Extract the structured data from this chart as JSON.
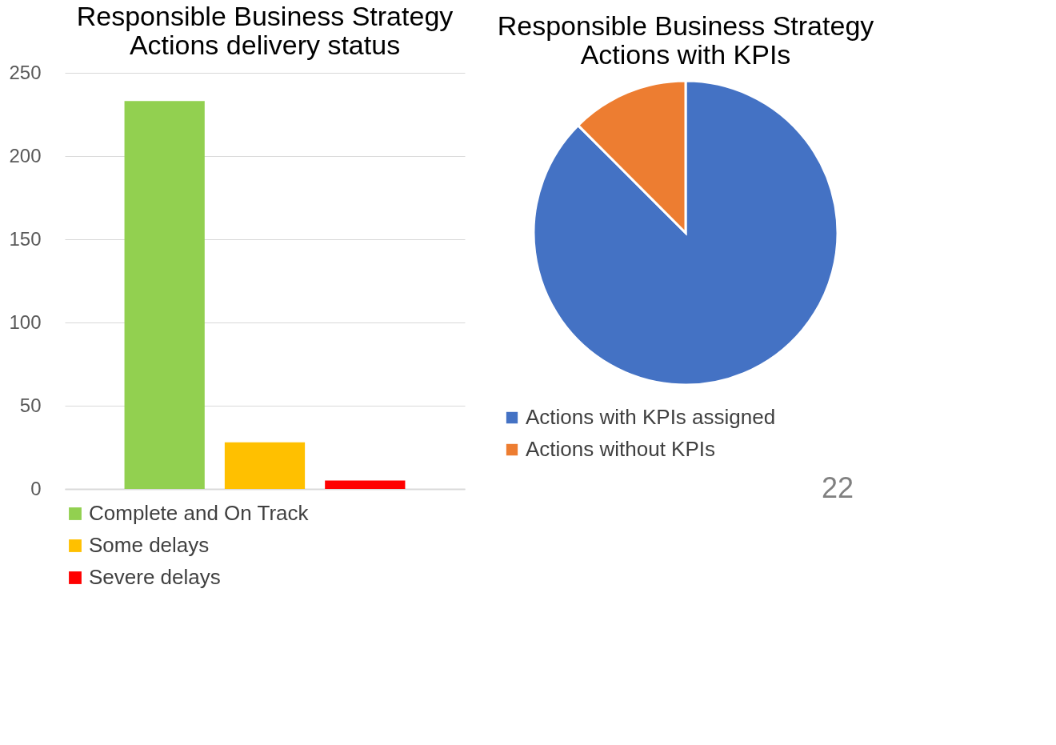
{
  "chart_data": [
    {
      "type": "bar",
      "title": "Responsible Business Strategy\nActions delivery status",
      "categories": [
        null
      ],
      "series": [
        {
          "name": "Complete and On Track",
          "color": "#92d050",
          "values": [
            233
          ]
        },
        {
          "name": "Some delays",
          "color": "#ffc000",
          "values": [
            28
          ]
        },
        {
          "name": "Severe delays",
          "color": "#ff0000",
          "values": [
            5
          ]
        }
      ],
      "ylim": [
        0,
        250
      ],
      "yticks": [
        0,
        50,
        100,
        150,
        200,
        250
      ],
      "grid": "y",
      "legend": "bottom",
      "tick_labels": "y"
    },
    {
      "type": "pie",
      "title": "Responsible Business Strategy\nActions with KPIs",
      "categories": [
        "Actions with KPIs assigned",
        "Actions without KPIs"
      ],
      "values": [
        87.5,
        12.5
      ],
      "colors": [
        "#4472c4",
        "#ed7d31"
      ],
      "legend": "bottom",
      "annotations": [
        "22"
      ]
    }
  ]
}
